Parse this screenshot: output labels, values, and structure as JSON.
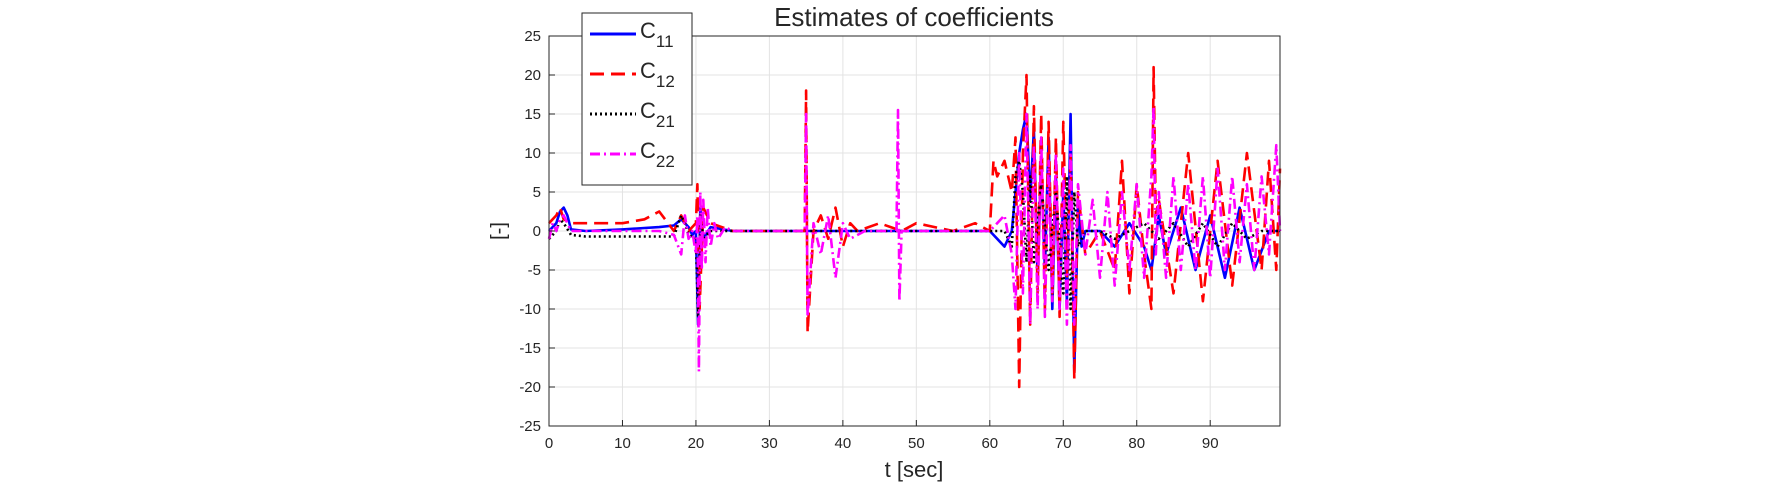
{
  "chart_data": {
    "type": "line",
    "title": "Estimates of coefficients",
    "xlabel": "t [sec]",
    "ylabel": "[-]",
    "xlim": [
      0,
      99.5
    ],
    "ylim": [
      -25,
      25
    ],
    "x_ticks": [
      0,
      10,
      20,
      30,
      40,
      50,
      60,
      70,
      80,
      90
    ],
    "y_ticks": [
      25,
      20,
      15,
      10,
      5,
      0,
      -5,
      -10,
      -15,
      -20,
      -25
    ],
    "grid": true,
    "legend_position": "top-left",
    "series": [
      {
        "name": "C11",
        "name_base": "C",
        "name_sub": "11",
        "color": "#0000ff",
        "dash": "solid",
        "x": [
          0,
          1,
          1.5,
          2,
          2.5,
          3,
          5,
          10,
          15,
          17,
          18,
          18.5,
          19,
          19.5,
          20,
          20.3,
          20.6,
          21,
          22,
          25,
          30,
          35,
          40,
          45,
          50,
          55,
          60,
          61,
          62,
          63,
          63.5,
          64,
          64.5,
          65,
          65.5,
          66,
          66.5,
          67,
          67.5,
          68,
          68.5,
          69,
          69.5,
          70,
          70.5,
          71,
          71.5,
          72,
          72.5,
          73,
          75,
          77,
          79,
          81,
          82,
          83,
          84,
          86,
          88,
          90,
          92,
          94,
          96,
          98,
          99.5
        ],
        "y": [
          0,
          1,
          2.5,
          3,
          2,
          0.2,
          0,
          0.2,
          0.5,
          0.7,
          1.5,
          1.0,
          0.5,
          -0.5,
          0,
          -12,
          3,
          -1,
          0.5,
          0,
          0,
          0,
          0,
          0,
          0,
          0,
          0,
          -1,
          -2,
          0,
          5,
          10,
          13,
          15,
          4,
          13,
          -6,
          9,
          -5,
          12,
          -10,
          7,
          -10,
          5,
          -9,
          15,
          -18,
          3,
          -2,
          0,
          0,
          -2,
          1,
          -2,
          -5,
          2,
          -3,
          3,
          -5,
          2,
          -6,
          3,
          -5,
          0,
          0
        ]
      },
      {
        "name": "C12",
        "name_base": "C",
        "name_sub": "12",
        "color": "#ff0000",
        "dash": "dashed",
        "x": [
          0,
          1,
          1.5,
          2,
          3,
          5,
          10,
          13,
          14,
          15,
          17,
          18,
          19,
          20,
          20.2,
          20.5,
          21,
          22,
          25,
          30,
          34.8,
          35,
          35.2,
          36,
          37,
          38,
          39,
          40,
          41,
          42,
          45,
          48,
          50,
          55,
          58,
          60,
          60.5,
          61,
          62,
          63,
          63.5,
          64,
          64.5,
          65,
          65.5,
          66,
          66.5,
          67,
          67.5,
          68,
          68.5,
          69,
          69.5,
          70,
          70.5,
          71,
          71.5,
          72,
          73,
          75,
          77,
          78,
          79,
          80,
          81,
          82,
          82.3,
          82.6,
          83,
          85,
          87,
          89,
          91,
          93,
          95,
          97,
          98,
          99,
          99.5
        ],
        "y": [
          1,
          2,
          3,
          1.5,
          1,
          1,
          1,
          1.5,
          2,
          2.5,
          0,
          2,
          0,
          1,
          6,
          -10,
          3,
          1,
          0,
          0,
          0,
          18,
          -13,
          0,
          2,
          -1,
          3,
          -2,
          1,
          0,
          1,
          0,
          1,
          0,
          1,
          0,
          9,
          7,
          9,
          5,
          12,
          -20,
          10,
          20,
          -12,
          16,
          -8,
          15,
          -10,
          14,
          -8,
          12,
          -11,
          14,
          -6,
          10,
          -19,
          5,
          -3,
          0,
          -5,
          9,
          -8,
          6,
          -3,
          -10,
          21,
          2,
          4,
          -8,
          10,
          -9,
          9,
          -7,
          10,
          -5,
          9,
          -5,
          8
        ]
      },
      {
        "name": "C21",
        "name_base": "C",
        "name_sub": "21",
        "color": "#000000",
        "dash": "dotted",
        "x": [
          0,
          1,
          1.5,
          2,
          3,
          5,
          10,
          15,
          17,
          18,
          18.5,
          19,
          20,
          20.3,
          20.6,
          21,
          22,
          25,
          30,
          35,
          40,
          45,
          50,
          55,
          60,
          62,
          63,
          63.5,
          64,
          64.5,
          65,
          65.5,
          66,
          67,
          68,
          69,
          70,
          70.5,
          71,
          71.5,
          72,
          73,
          75,
          77,
          79,
          81,
          83,
          85,
          87,
          89,
          91,
          93,
          95,
          97,
          99.5
        ],
        "y": [
          -1,
          0,
          1.5,
          1,
          -0.5,
          -0.7,
          -0.7,
          -0.7,
          -0.7,
          2,
          1,
          -0.5,
          -1,
          -11,
          2,
          -1,
          0,
          0,
          0,
          0,
          0,
          0,
          0,
          0,
          0,
          0,
          -2,
          7,
          9,
          5,
          -4,
          7,
          -4,
          6,
          -5,
          5,
          -8,
          7,
          -10,
          5,
          -2,
          0,
          0,
          -1,
          0,
          1,
          -1,
          1,
          -2,
          1,
          -2,
          1,
          -1,
          0,
          0
        ]
      },
      {
        "name": "C22",
        "name_base": "C",
        "name_sub": "22",
        "color": "#ff00ff",
        "dash": "dashdot",
        "x": [
          0,
          0.5,
          1,
          1.5,
          2,
          2.5,
          3,
          5,
          10,
          15,
          17,
          18,
          18.5,
          19,
          19.5,
          20,
          20.2,
          20.4,
          20.6,
          20.8,
          21,
          21.3,
          21.6,
          22,
          22.5,
          23,
          24,
          25,
          27,
          30,
          34.8,
          35,
          35.2,
          36,
          37,
          38,
          39,
          40,
          41,
          43,
          45,
          47.3,
          47.5,
          47.7,
          48,
          50,
          55,
          60,
          61,
          62,
          63,
          63.5,
          64,
          64.5,
          65,
          65.5,
          66,
          66.5,
          67,
          67.5,
          68,
          68.5,
          69,
          69.5,
          70,
          70.5,
          71,
          71.5,
          72,
          73,
          74,
          75,
          76,
          77,
          78,
          79,
          80,
          81,
          82,
          82.3,
          82.6,
          83,
          84,
          85,
          86,
          87,
          88,
          89,
          90,
          91,
          92,
          93,
          94,
          95,
          96,
          97,
          98,
          99,
          99.5
        ],
        "y": [
          -1,
          1,
          0,
          1.5,
          2,
          1,
          0,
          0,
          0,
          0,
          -0.5,
          -3,
          2,
          -1,
          0,
          -3,
          2,
          -18,
          5,
          -5,
          4,
          -4,
          3,
          -2,
          1,
          -1,
          0.5,
          0,
          0,
          0,
          0,
          15,
          -11,
          1,
          -3,
          2,
          -6,
          1,
          -1,
          0,
          0,
          0,
          15.5,
          -9,
          0,
          0,
          0,
          0,
          1,
          2,
          -3,
          -10,
          10,
          -8,
          15,
          -12,
          11,
          -10,
          12,
          -11,
          9,
          -9,
          10,
          -10,
          8,
          -12,
          11,
          -12,
          6,
          -3,
          4,
          -6,
          5,
          -7,
          5,
          -5,
          6,
          -6,
          7,
          16,
          -3,
          5,
          -6,
          7,
          -5,
          6,
          -5,
          7,
          -6,
          8,
          -5,
          7,
          -4,
          6,
          -5,
          7,
          -3,
          11,
          0
        ]
      }
    ]
  }
}
